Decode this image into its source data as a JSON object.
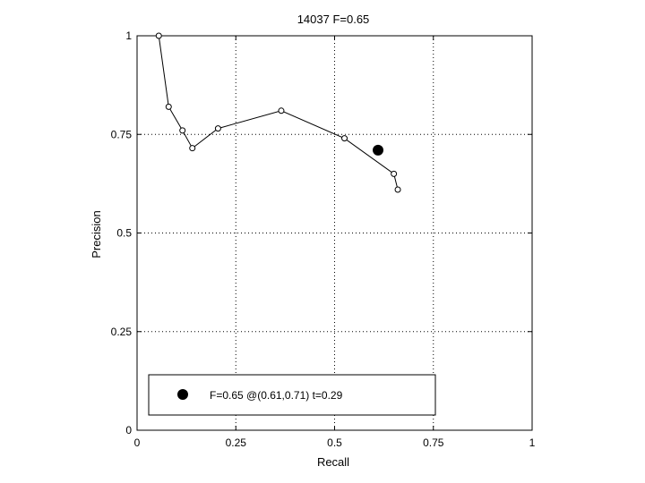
{
  "chart_data": {
    "type": "line",
    "title": "14037 F=0.65",
    "xlabel": "Recall",
    "ylabel": "Precision",
    "xlim": [
      0,
      1
    ],
    "ylim": [
      0,
      1
    ],
    "grid": true,
    "xticks": [
      0,
      0.25,
      0.5,
      0.75,
      1
    ],
    "yticks": [
      0,
      0.25,
      0.5,
      0.75,
      1
    ],
    "xtick_labels": [
      "0",
      "0.25",
      "0.5",
      "0.75",
      "1"
    ],
    "ytick_labels": [
      "0",
      "0.25",
      "0.5",
      "0.75",
      "1"
    ],
    "series": [
      {
        "x": [
          0.055,
          0.08,
          0.115,
          0.14,
          0.205,
          0.365,
          0.525,
          0.65,
          0.66
        ],
        "y": [
          1.0,
          0.82,
          0.76,
          0.715,
          0.765,
          0.81,
          0.74,
          0.65,
          0.61
        ]
      }
    ],
    "best_point": {
      "x": 0.61,
      "y": 0.71
    },
    "legend": {
      "position": "bottom-left",
      "label": "F=0.65 @(0.61,0.71) t=0.29"
    }
  }
}
